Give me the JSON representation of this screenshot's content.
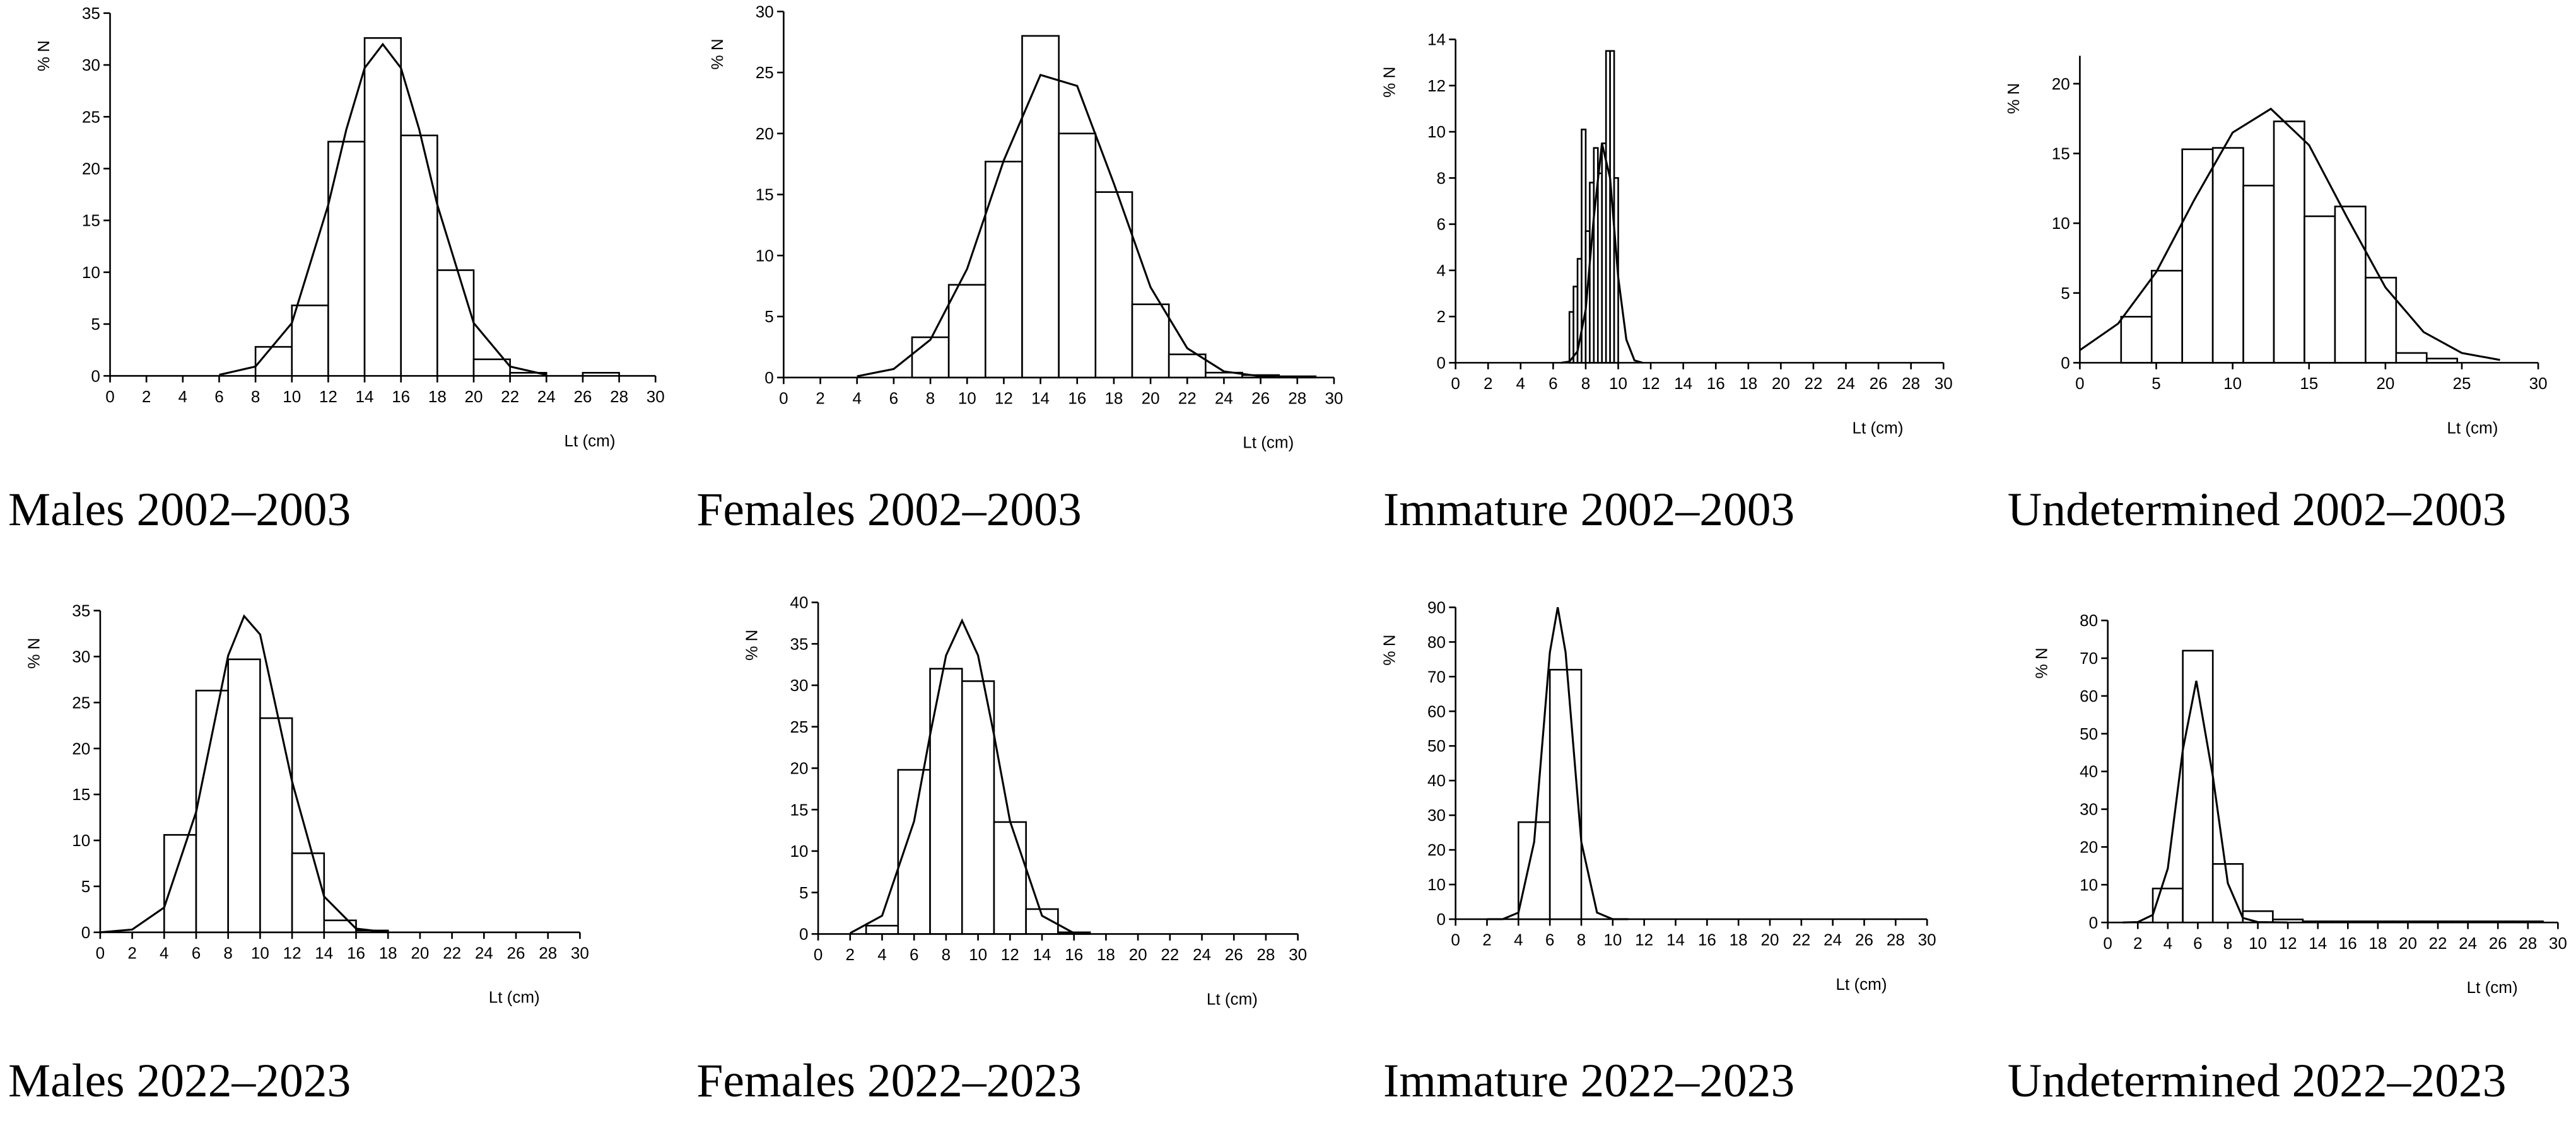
{
  "chart_data": [
    {
      "type": "histogram",
      "title": "Males 2002–2003",
      "xlabel": "Lt (cm)",
      "ylabel": "% N",
      "bins": [
        6,
        8,
        10,
        12,
        14,
        16,
        18,
        20,
        22,
        24,
        26,
        28
      ],
      "values": [
        0,
        2.8,
        6.8,
        22.6,
        32.6,
        23.2,
        10.2,
        1.6,
        0.3,
        0,
        0.3
      ],
      "curve": {
        "x": [
          6,
          8,
          10,
          12,
          13,
          14,
          15,
          16,
          17,
          18,
          20,
          22,
          24
        ],
        "values": [
          0.1,
          0.9,
          5.1,
          16.5,
          23.8,
          29.7,
          32,
          29.7,
          23.8,
          16.5,
          5.1,
          0.9,
          0.1
        ]
      },
      "xlim": [
        0,
        30
      ],
      "ylim": [
        0,
        35
      ],
      "xticks": [
        0,
        2,
        4,
        6,
        8,
        10,
        12,
        14,
        16,
        18,
        20,
        22,
        24,
        26,
        28,
        30
      ],
      "yticks": [
        0,
        5,
        10,
        15,
        20,
        25,
        30,
        35
      ]
    },
    {
      "type": "histogram",
      "title": "Females 2002–2003",
      "xlabel": "Lt (cm)",
      "ylabel": "% N",
      "bins": [
        7,
        9,
        11,
        13,
        15,
        17,
        19,
        21,
        23,
        25,
        27,
        29
      ],
      "values": [
        3.3,
        7.6,
        17.7,
        28,
        20,
        15.2,
        6,
        1.9,
        0.4,
        0.2,
        0.1
      ],
      "curve": {
        "x": [
          4,
          6,
          8,
          10,
          12,
          14,
          16,
          18,
          20,
          22,
          24,
          26,
          28
        ],
        "values": [
          0.1,
          0.7,
          3.1,
          8.9,
          17.8,
          24.8,
          23.9,
          15.9,
          7.4,
          2.4,
          0.5,
          0.1,
          0
        ]
      },
      "xlim": [
        0,
        30
      ],
      "ylim": [
        0,
        30
      ],
      "xticks": [
        0,
        2,
        4,
        6,
        8,
        10,
        12,
        14,
        16,
        18,
        20,
        22,
        24,
        26,
        28,
        30
      ],
      "yticks": [
        0,
        5,
        10,
        15,
        20,
        25,
        30
      ]
    },
    {
      "type": "histogram",
      "title": "Immature 2002–2003",
      "xlabel": "Lt (cm)",
      "ylabel": "% N",
      "bins": [
        7,
        7.25,
        7.5,
        7.75,
        8,
        8.25,
        8.5,
        8.75,
        9,
        9.25,
        9.5,
        9.75,
        10
      ],
      "values": [
        2.2,
        3.3,
        4.5,
        10.1,
        5.7,
        7.8,
        9.3,
        8.2,
        9.5,
        13.5,
        13.5,
        8
      ],
      "curve": {
        "x": [
          6.5,
          7,
          7.5,
          8,
          8.5,
          9,
          9.5,
          10,
          10.5,
          11,
          11.5
        ],
        "values": [
          0,
          0.05,
          0.5,
          2.3,
          6.3,
          9.5,
          8,
          3.7,
          1,
          0.1,
          0
        ]
      },
      "xlim": [
        0,
        30
      ],
      "ylim": [
        0,
        14
      ],
      "xticks": [
        0,
        2,
        4,
        6,
        8,
        10,
        12,
        14,
        16,
        18,
        20,
        22,
        24,
        26,
        28,
        30
      ],
      "yticks": [
        0,
        2,
        4,
        6,
        8,
        10,
        12,
        14
      ]
    },
    {
      "type": "histogram",
      "title": "Undetermined 2002–2003",
      "xlabel": "Lt (cm)",
      "ylabel": "% N",
      "bins": [
        2.7,
        4.7,
        6.7,
        8.7,
        10.7,
        12.7,
        14.7,
        16.7,
        18.7,
        20.7,
        22.7,
        24.7
      ],
      "values": [
        3.3,
        6.6,
        15.3,
        15.4,
        12.7,
        17.3,
        10.5,
        11.2,
        6.1,
        0.7,
        0.3
      ],
      "curve": {
        "x": [
          0,
          2.5,
          5,
          7.5,
          10,
          12.5,
          15,
          17.5,
          20,
          22.5,
          25,
          27.5
        ],
        "values": [
          0.9,
          2.8,
          6.5,
          11.7,
          16.5,
          18.2,
          15.6,
          10.4,
          5.4,
          2.2,
          0.7,
          0.2
        ]
      },
      "xlim": [
        0,
        30
      ],
      "ylim": [
        0,
        22
      ],
      "xticks": [
        0,
        5,
        10,
        15,
        20,
        25,
        30
      ],
      "yticks": [
        0,
        5,
        10,
        15,
        20
      ]
    },
    {
      "type": "histogram",
      "title": "Males 2022–2023",
      "xlabel": "Lt (cm)",
      "ylabel": "% N",
      "bins": [
        4,
        6,
        8,
        10,
        12,
        14,
        16,
        18
      ],
      "values": [
        10.6,
        26.3,
        29.7,
        23.3,
        8.6,
        1.3,
        0.2
      ],
      "curve": {
        "x": [
          0,
          2,
          4,
          6,
          8,
          9,
          10,
          12,
          14,
          16,
          18
        ],
        "values": [
          0,
          0.3,
          2.7,
          13.1,
          30.1,
          34.4,
          32.4,
          16.4,
          3.9,
          0.4,
          0
        ]
      },
      "xlim": [
        0,
        30
      ],
      "ylim": [
        0,
        35
      ],
      "xticks": [
        0,
        2,
        4,
        6,
        8,
        10,
        12,
        14,
        16,
        18,
        20,
        22,
        24,
        26,
        28,
        30
      ],
      "yticks": [
        0,
        5,
        10,
        15,
        20,
        25,
        30,
        35
      ]
    },
    {
      "type": "histogram",
      "title": "Females 2022–2023",
      "xlabel": "Lt (cm)",
      "ylabel": "% N",
      "bins": [
        3,
        5,
        7,
        9,
        11,
        13,
        15,
        17
      ],
      "values": [
        1,
        19.8,
        32,
        30.5,
        13.5,
        3,
        0.2
      ],
      "curve": {
        "x": [
          2,
          4,
          6,
          7,
          8,
          9,
          10,
          11,
          12,
          14,
          16
        ],
        "values": [
          0.1,
          2.2,
          13.6,
          24,
          33.6,
          37.8,
          33.6,
          24,
          13.6,
          2.2,
          0.1
        ]
      },
      "xlim": [
        0,
        30
      ],
      "ylim": [
        0,
        40
      ],
      "xticks": [
        0,
        2,
        4,
        6,
        8,
        10,
        12,
        14,
        16,
        18,
        20,
        22,
        24,
        26,
        28,
        30
      ],
      "yticks": [
        0,
        5,
        10,
        15,
        20,
        25,
        30,
        35,
        40
      ]
    },
    {
      "type": "histogram",
      "title": "Immature 2022–2023",
      "xlabel": "Lt (cm)",
      "ylabel": "% N",
      "bins": [
        4,
        6,
        8
      ],
      "values": [
        28,
        72
      ],
      "curve": {
        "x": [
          2,
          3,
          4,
          5,
          6,
          6.5,
          7,
          8,
          9,
          10,
          11
        ],
        "values": [
          0,
          0,
          1.9,
          22.3,
          77,
          90,
          77,
          22.3,
          1.9,
          0,
          0
        ]
      },
      "xlim": [
        0,
        30
      ],
      "ylim": [
        0,
        90
      ],
      "xticks": [
        0,
        2,
        4,
        6,
        8,
        10,
        12,
        14,
        16,
        18,
        20,
        22,
        24,
        26,
        28,
        30
      ],
      "yticks": [
        0,
        10,
        20,
        30,
        40,
        50,
        60,
        70,
        80,
        90
      ]
    },
    {
      "type": "histogram",
      "title": "Undetermined 2022–2023",
      "xlabel": "Lt (cm)",
      "ylabel": "% N",
      "bins": [
        3,
        5,
        7,
        9,
        11,
        13,
        15,
        17,
        19,
        21,
        23,
        25,
        27,
        29
      ],
      "values": [
        9,
        72,
        15.5,
        3,
        0.8,
        0.3,
        0.3,
        0.3,
        0.3,
        0.3,
        0.3,
        0.3,
        0.3
      ],
      "curve": {
        "x": [
          1,
          2,
          3,
          4,
          5,
          5.9,
          7,
          8,
          9,
          10,
          12
        ],
        "values": [
          0,
          0.1,
          2,
          14.3,
          45.7,
          64,
          38.8,
          10.4,
          1.2,
          0.1,
          0
        ]
      },
      "xlim": [
        0,
        30
      ],
      "ylim": [
        0,
        80
      ],
      "xticks": [
        0,
        2,
        4,
        6,
        8,
        10,
        12,
        14,
        16,
        18,
        20,
        22,
        24,
        26,
        28,
        30
      ],
      "yticks": [
        0,
        10,
        20,
        30,
        40,
        50,
        60,
        70,
        80
      ]
    }
  ]
}
